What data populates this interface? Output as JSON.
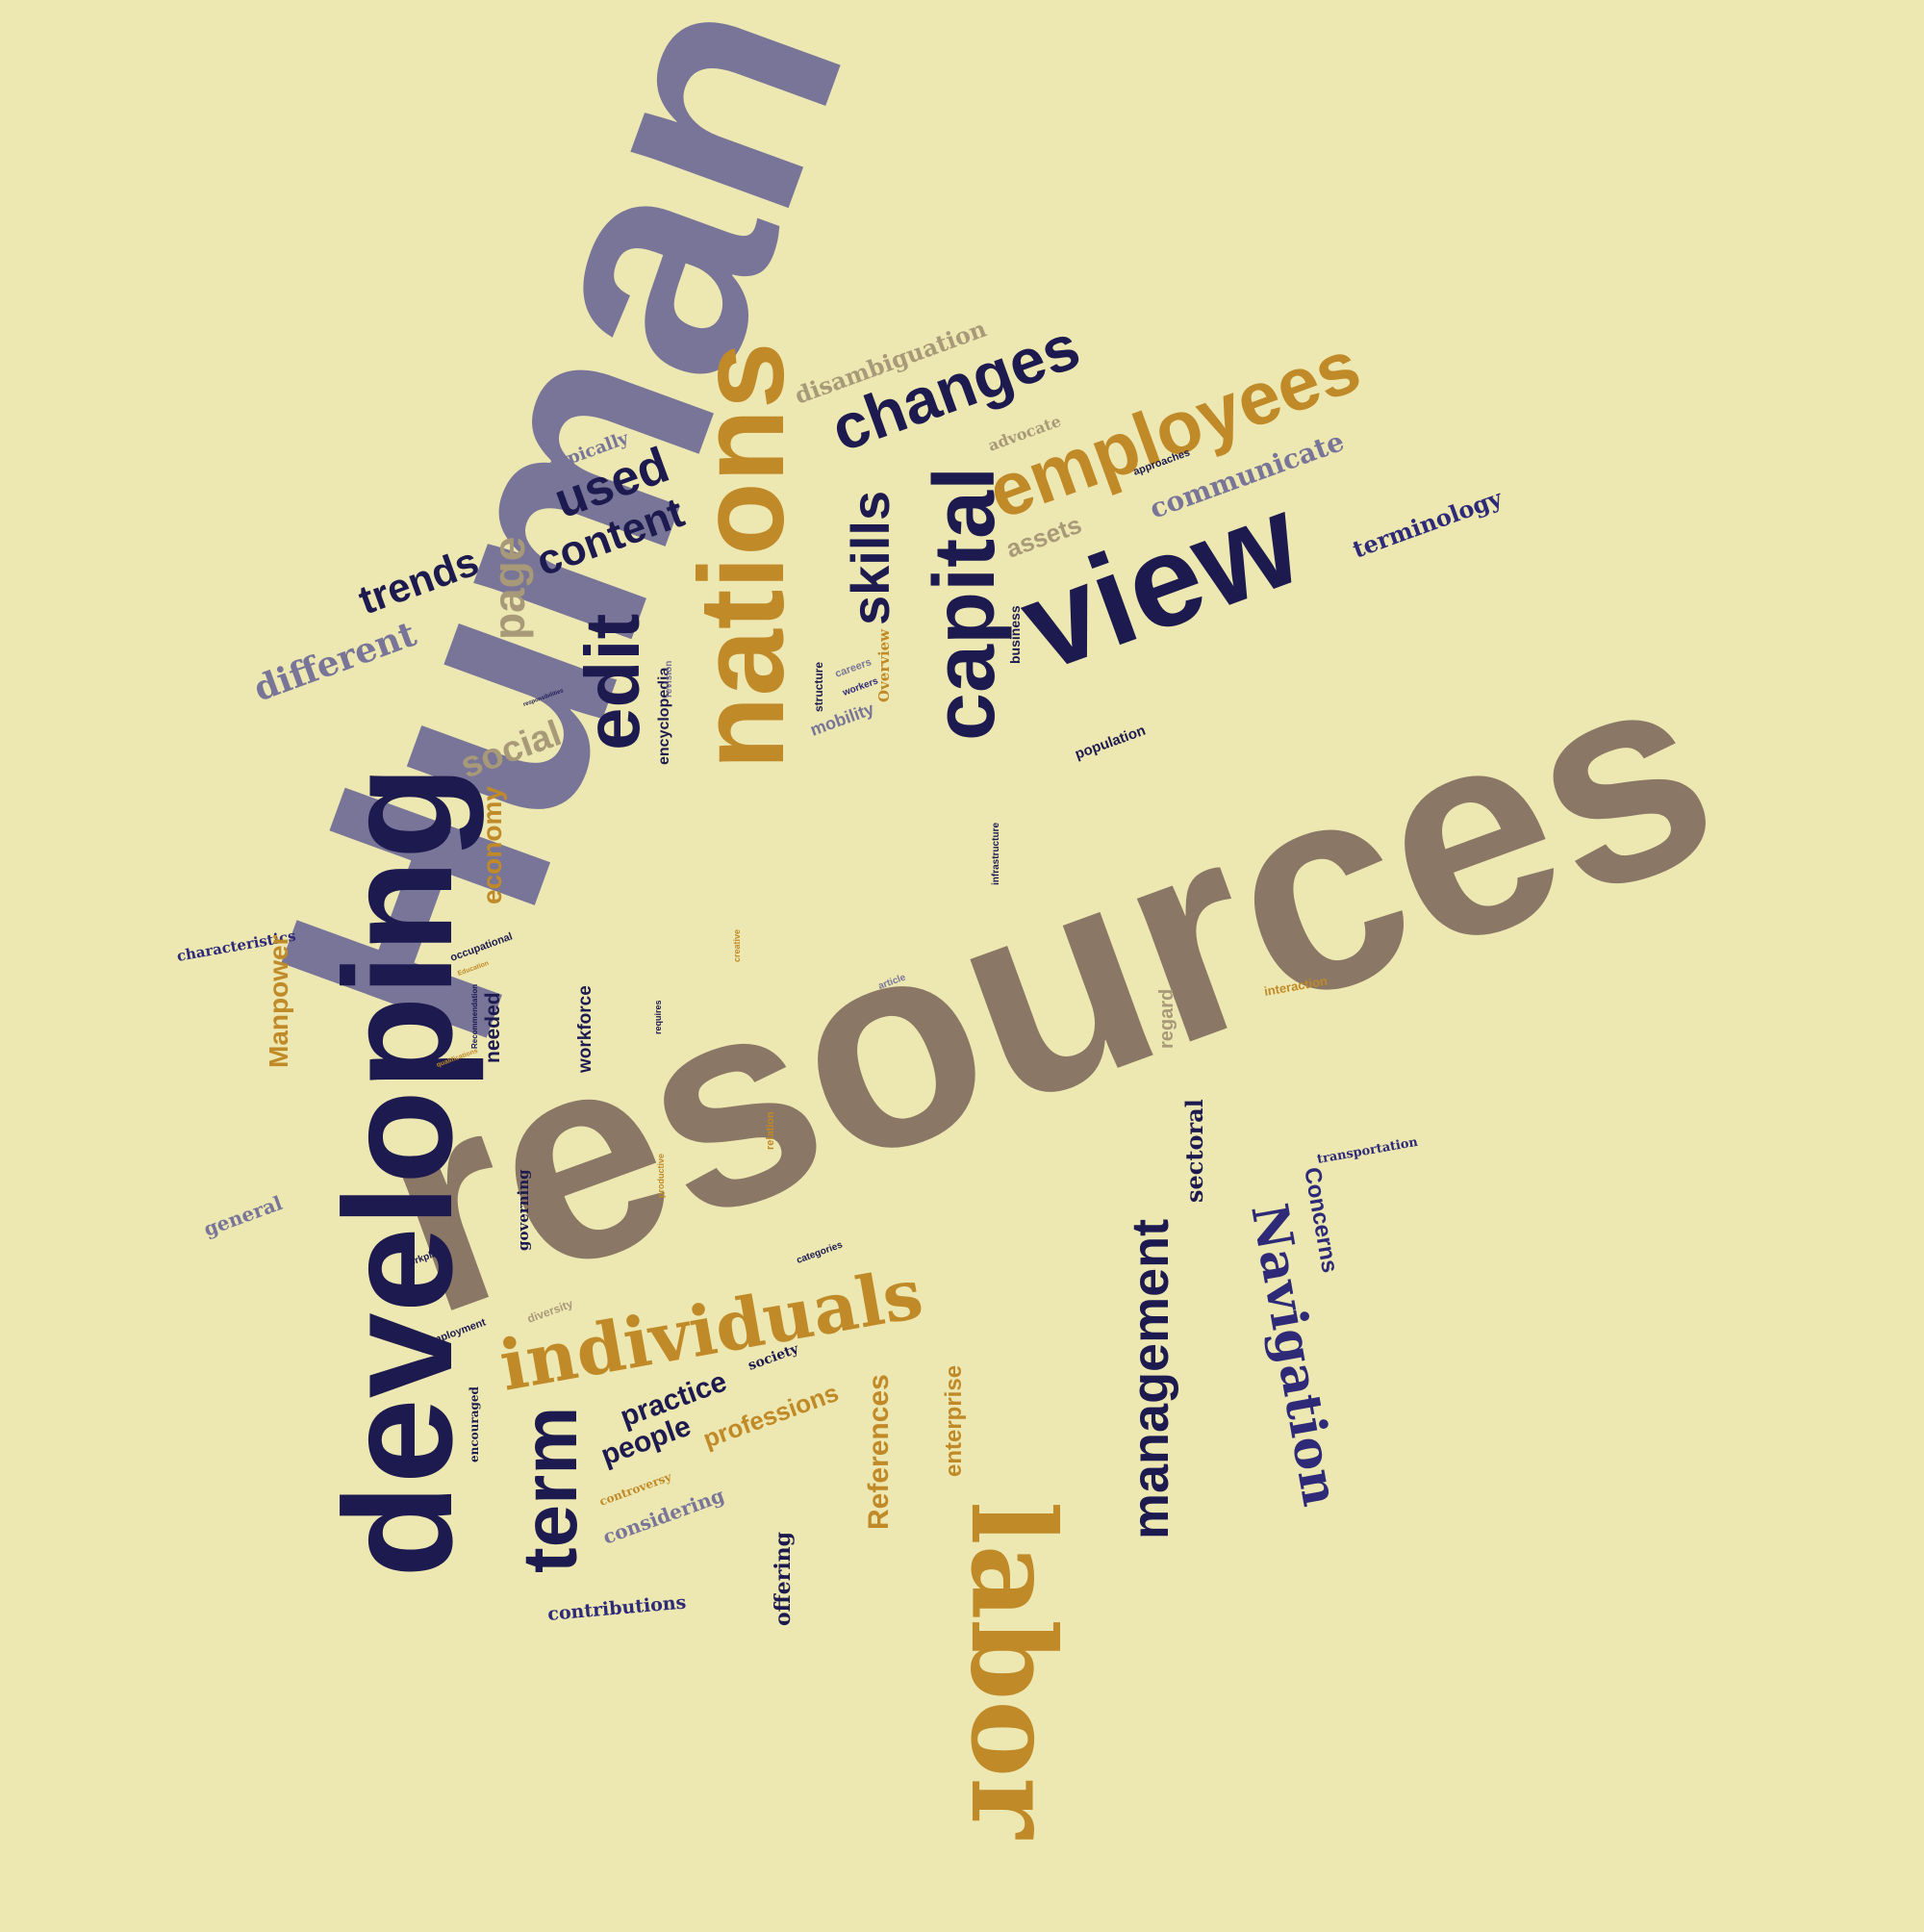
{
  "colors": {
    "background": "#ede8b2",
    "navy": "#1d1a50",
    "indigo": "#2e2a78",
    "gold": "#c08a28",
    "taupe": "#8a7766",
    "slate": "#797598",
    "khaki": "#a89a78"
  },
  "words": {
    "human": "Human",
    "resources": "resources",
    "developing": "developing",
    "nations": "nations",
    "view": "view",
    "capital": "capital",
    "labor": "labor",
    "employees": "employees",
    "changes": "changes",
    "individuals": "individuals",
    "edit": "edit",
    "skills": "skills",
    "term": "term",
    "management": "management",
    "navigation": "Navigation",
    "used": "used",
    "content": "content",
    "page": "page",
    "trends": "trends",
    "different": "different",
    "disambiguation": "disambiguation",
    "communicate": "communicate",
    "terminology": "terminology",
    "assets": "assets",
    "typically": "typically",
    "advocate": "advocate",
    "approaches": "approaches",
    "social": "social",
    "economy": "economy",
    "encyclopedia": "encyclopedia",
    "mobility": "mobility",
    "population": "population",
    "business": "business",
    "overview": "Overview",
    "careers": "careers",
    "workers": "workers",
    "structure": "structure",
    "revision": "revision",
    "responsibilities": "responsibilities",
    "vocational": "Vocational",
    "characteristics": "characteristics",
    "manpower": "Manpower",
    "occupational": "occupational",
    "education": "Education",
    "recommendation": "Recommendation",
    "qualifications": "qualifications",
    "needed": "needed",
    "workforce": "workforce",
    "requires": "requires",
    "creative": "creative",
    "article": "article",
    "infrastructure": "infrastructure",
    "interaction": "interaction",
    "regard": "regard",
    "sectoral": "sectoral",
    "concerns": "Concerns",
    "transportation": "transportation",
    "general": "general",
    "governing": "governing",
    "workplace": "workplace",
    "diversity": "diversity",
    "productive": "productive",
    "relation": "relation",
    "categories": "categories",
    "employment": "employment",
    "encouraged": "encouraged",
    "practice": "practice",
    "society": "society",
    "people": "people",
    "professions": "professions",
    "references": "References",
    "enterprise": "enterprise",
    "controversy": "controversy",
    "considering": "considering",
    "offering": "offering",
    "contributions": "contributions"
  }
}
